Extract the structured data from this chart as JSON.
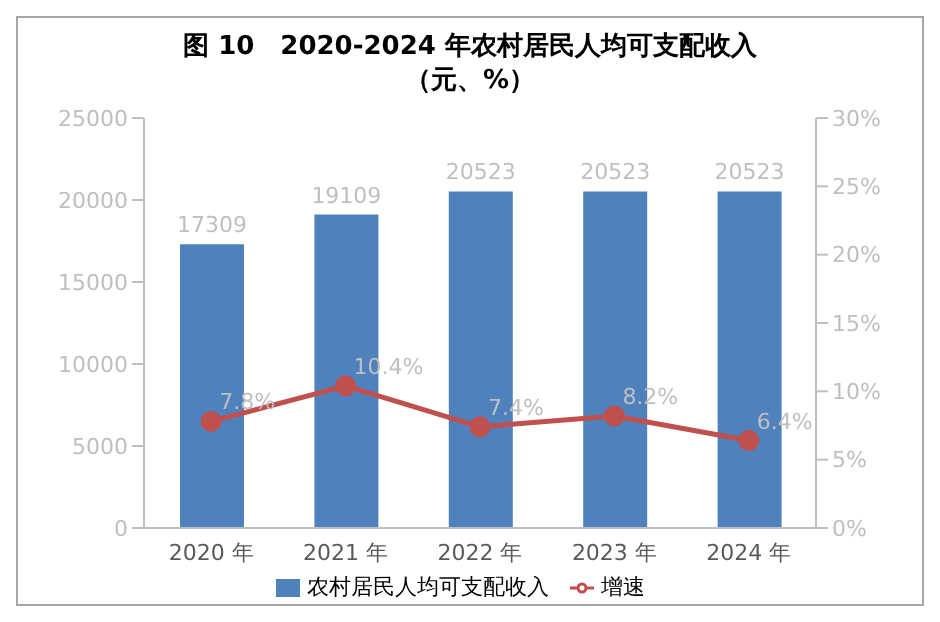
{
  "chart_data": {
    "type": "bar",
    "title": "图 10　2020-2024 年农村居民人均可支配收入（元、%）",
    "categories": [
      "2020 年",
      "2021 年",
      "2022 年",
      "2023 年",
      "2024 年"
    ],
    "series": [
      {
        "name": "农村居民人均可支配收入",
        "color": "#4f81bd",
        "values": [
          17309,
          19109,
          20523,
          20523,
          20523
        ],
        "value_labels": [
          "17309",
          "19109",
          "20523",
          "20523",
          "20523"
        ]
      },
      {
        "name": "增速",
        "type": "line",
        "axis": "y2",
        "color": "#c0504d",
        "values": [
          7.8,
          10.4,
          7.4,
          8.2,
          6.4
        ],
        "value_labels": [
          "7.8%",
          "10.4%",
          "7.4%",
          "8.2%",
          "6.4%"
        ]
      }
    ],
    "ylim": [
      0,
      25000
    ],
    "yticks": [
      0,
      5000,
      10000,
      15000,
      20000,
      25000
    ],
    "y2lim": [
      0,
      30
    ],
    "y2ticks": [
      {
        "value": 0,
        "label": "0%"
      },
      {
        "value": 5,
        "label": "5%"
      },
      {
        "value": 10,
        "label": "10%"
      },
      {
        "value": 15,
        "label": "15%"
      },
      {
        "value": 20,
        "label": "20%"
      },
      {
        "value": 25,
        "label": "25%"
      },
      {
        "value": 30,
        "label": "30%"
      }
    ],
    "legend": "bottom",
    "marker": "circle",
    "grid": false
  }
}
